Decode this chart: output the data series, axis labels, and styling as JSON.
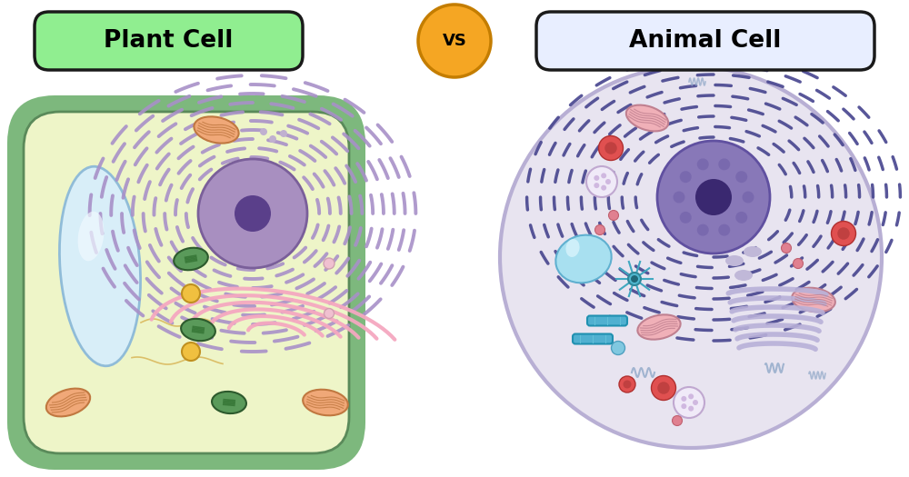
{
  "bg_color": "#ffffff",
  "plant_label": "Plant Cell",
  "animal_label": "Animal Cell",
  "vs_label": "VS",
  "plant_label_bg": "#90ee90",
  "plant_label_border": "#1a1a1a",
  "animal_label_bg": "#e8eeff",
  "animal_label_border": "#1a1a1a",
  "vs_bg": "#f5a623",
  "vs_border": "#c47d00",
  "plant_wall_color": "#7db87d",
  "plant_cyto_color": "#eef5c8",
  "plant_wall_border": "#5a8a5a",
  "vacuole_fill": "#d8eef8",
  "vacuole_border": "#90bcd8",
  "nucleus_fill": "#a88fc0",
  "nucleus_border": "#7a5f9a",
  "nucleolus_fill": "#5a3f8a",
  "er_color_plant": "#a890c8",
  "er_color_animal": "#4a4890",
  "golgi_color": "#f5a8c0",
  "mito_fill": "#f0a878",
  "mito_border": "#c07840",
  "chloro_fill": "#5a9a5a",
  "chloro_border": "#2d5a2d",
  "vesicle_yellow_fill": "#f0c040",
  "vesicle_yellow_border": "#c09020",
  "animal_cell_fill": "#e8e4f0",
  "animal_cell_border": "#b8afd4",
  "animal_nucleus_fill": "#8878b8",
  "animal_nucleus_border": "#6050a0",
  "animal_nucleolus": "#3a2870",
  "vacuole_animal_fill": "#a8e0f0",
  "vacuole_animal_border": "#60b0d0",
  "rbc_fill": "#e05050",
  "rbc_border": "#b03030",
  "lysosome_fill": "#f0e8f8",
  "lysosome_border": "#c0a8d8",
  "centriole_color": "#50b0d0",
  "golgi_animal_color": "#b8b0d8",
  "mito_animal_fill": "#f0b0b8",
  "mito_animal_border": "#c08090",
  "smooth_er_color": "#9888c0",
  "wavy_color": "#90a8c8",
  "dot_color": "#d0c0e0",
  "pink_dot_color": "#e08090"
}
